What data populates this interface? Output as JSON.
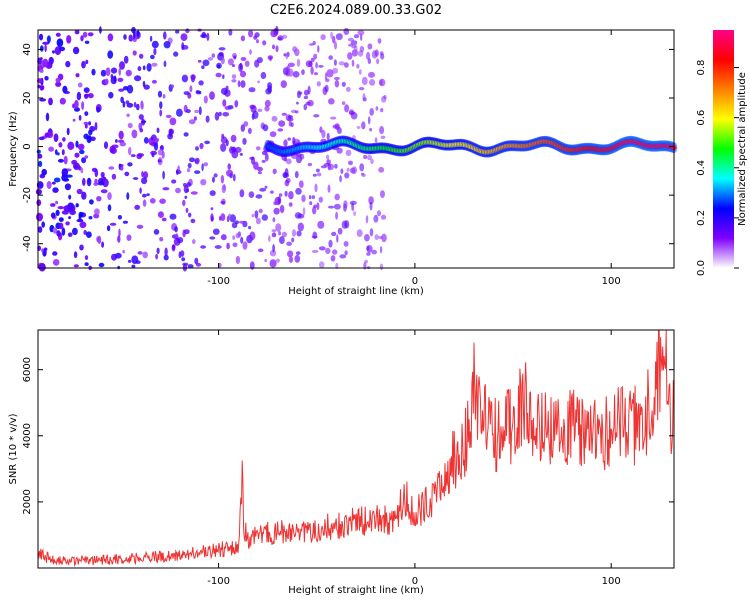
{
  "figure": {
    "title": "C2E6.2024.089.00.33.G02"
  },
  "chart_data": [
    {
      "type": "heatmap",
      "panel": "top",
      "xlabel": "Height of straight line (km)",
      "ylabel": "Frequency (Hz)",
      "xlim": [
        -192,
        132
      ],
      "ylim": [
        -50,
        48
      ],
      "x_ticks": [
        -100,
        0,
        100
      ],
      "y_ticks": [
        -40,
        -20,
        0,
        20,
        40
      ],
      "x_tick_labels": [
        "-100",
        "0",
        "100"
      ],
      "y_tick_labels": [
        "-40",
        "-20",
        "0",
        "20",
        "40"
      ],
      "grid": false,
      "colorbar": {
        "label": "Normalized spectral amplitude",
        "range": [
          0,
          0.95
        ],
        "ticks": [
          0.0,
          0.2,
          0.4,
          0.6,
          0.8
        ],
        "tick_labels": [
          "0.0",
          "0.2",
          "0.4",
          "0.6",
          "0.8"
        ],
        "colors": [
          "#ffffff",
          "#7f00ff",
          "#0000ff",
          "#00ffff",
          "#00ff00",
          "#ffff00",
          "#ff7f00",
          "#ff0000",
          "#ff0088"
        ]
      },
      "noise_region_x": [
        -192,
        -15
      ],
      "tone_start_x": -75,
      "tone_center_frequency": 0
    },
    {
      "type": "line",
      "panel": "bottom",
      "xlabel": "Height of straight line (km)",
      "ylabel": "SNR (10 * v/v)",
      "xlim": [
        -192,
        132
      ],
      "ylim": [
        0,
        7200
      ],
      "x_ticks": [
        -100,
        0,
        100
      ],
      "y_ticks": [
        2000,
        4000,
        6000
      ],
      "x_tick_labels": [
        "-100",
        "0",
        "100"
      ],
      "y_tick_labels": [
        "2000",
        "4000",
        "6000"
      ],
      "grid": false,
      "line_color": "#ee3333",
      "series": [
        {
          "x": [
            -192,
            -185,
            -175,
            -160,
            -140,
            -120,
            -105,
            -95,
            -90,
            -88,
            -87,
            -85,
            -80,
            -70,
            -60,
            -50,
            -40,
            -30,
            -20,
            -10,
            -5,
            0,
            5,
            10,
            15,
            20,
            25,
            30,
            35,
            40,
            45,
            50,
            55,
            60,
            65,
            70,
            75,
            80,
            85,
            90,
            95,
            100,
            105,
            110,
            115,
            120,
            125,
            128,
            130,
            132
          ],
          "y": [
            450,
            250,
            200,
            250,
            300,
            400,
            500,
            600,
            700,
            2600,
            1200,
            800,
            1000,
            1100,
            1000,
            1200,
            1300,
            1400,
            1500,
            1400,
            2200,
            1500,
            2000,
            2100,
            3000,
            3300,
            3500,
            5500,
            4500,
            4000,
            4200,
            4300,
            5200,
            4300,
            4500,
            4000,
            4200,
            4400,
            4000,
            4200,
            3900,
            4300,
            4600,
            4200,
            4500,
            4800,
            6200,
            7200,
            4300,
            4600
          ]
        }
      ]
    }
  ]
}
